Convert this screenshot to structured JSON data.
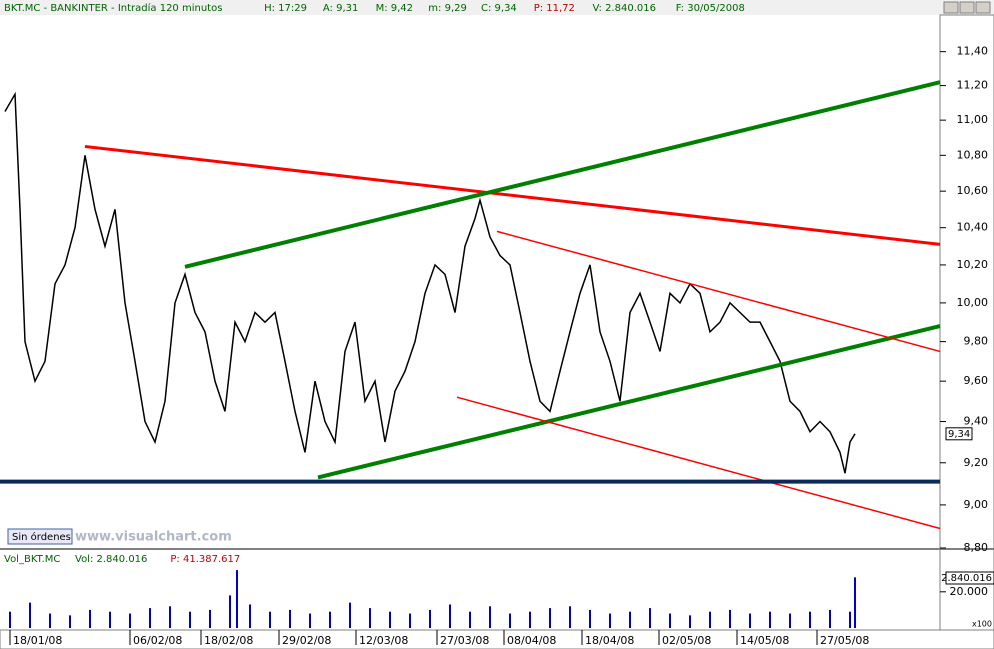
{
  "chart_data": [
    {
      "type": "line",
      "title": "BKT.MC - BANKINTER - Intradía 120 minutos",
      "stats": [
        "H: 17:29",
        "A: 9,31",
        "M: 9,42",
        "m: 9,29",
        "C: 9,34",
        "P: 11,72",
        "V: 2.840.016",
        "F: 30/05/2008"
      ],
      "log_scale": true,
      "xlim": [
        0,
        940
      ],
      "ylim": [
        8.8,
        11.62
      ],
      "yticks": [
        {
          "value": 11.4,
          "label": "11,40"
        },
        {
          "value": 11.2,
          "label": "11,20"
        },
        {
          "value": 11.0,
          "label": "11,00"
        },
        {
          "value": 10.8,
          "label": "10,80"
        },
        {
          "value": 10.6,
          "label": "10,60"
        },
        {
          "value": 10.4,
          "label": "10,40"
        },
        {
          "value": 10.2,
          "label": "10,20"
        },
        {
          "value": 10.0,
          "label": "10,00"
        },
        {
          "value": 9.8,
          "label": "9,80"
        },
        {
          "value": 9.6,
          "label": "9,60"
        },
        {
          "value": 9.4,
          "label": "9,40"
        },
        {
          "value": 9.2,
          "label": "9,20"
        },
        {
          "value": 9.0,
          "label": "9,00"
        },
        {
          "value": 8.8,
          "label": "8,80"
        }
      ],
      "xticks": [
        {
          "value": 10,
          "label": "18/01/08"
        },
        {
          "value": 130,
          "label": "06/02/08"
        },
        {
          "value": 201,
          "label": "18/02/08"
        },
        {
          "value": 279,
          "label": "29/02/08"
        },
        {
          "value": 356,
          "label": "12/03/08"
        },
        {
          "value": 437,
          "label": "27/03/08"
        },
        {
          "value": 504,
          "label": "08/04/08"
        },
        {
          "value": 582,
          "label": "18/04/08"
        },
        {
          "value": 659,
          "label": "02/05/08"
        },
        {
          "value": 737,
          "label": "14/05/08"
        },
        {
          "value": 817,
          "label": "27/05/08"
        }
      ],
      "series": [
        {
          "color": "#000000",
          "x": [
            5,
            15,
            20,
            25,
            35,
            45,
            55,
            65,
            75,
            85,
            95,
            105,
            115,
            125,
            135,
            145,
            155,
            165,
            175,
            185,
            195,
            205,
            215,
            225,
            235,
            245,
            255,
            265,
            275,
            285,
            295,
            305,
            315,
            325,
            335,
            345,
            355,
            365,
            375,
            385,
            395,
            405,
            415,
            425,
            435,
            445,
            455,
            465,
            475,
            480,
            490,
            500,
            510,
            520,
            530,
            540,
            550,
            560,
            570,
            580,
            590,
            600,
            610,
            620,
            630,
            640,
            650,
            660,
            670,
            680,
            690,
            700,
            710,
            720,
            730,
            740,
            750,
            760,
            770,
            780,
            790,
            800,
            810,
            820,
            830,
            840,
            845,
            850,
            855
          ],
          "values": [
            11.05,
            11.15,
            10.5,
            9.8,
            9.6,
            9.7,
            10.1,
            10.2,
            10.4,
            10.8,
            10.5,
            10.3,
            10.5,
            10.0,
            9.7,
            9.4,
            9.3,
            9.5,
            10.0,
            10.15,
            9.95,
            9.85,
            9.6,
            9.45,
            9.9,
            9.8,
            9.95,
            9.9,
            9.95,
            9.7,
            9.45,
            9.25,
            9.6,
            9.4,
            9.3,
            9.75,
            9.9,
            9.5,
            9.6,
            9.3,
            9.55,
            9.65,
            9.8,
            10.05,
            10.2,
            10.15,
            9.95,
            10.3,
            10.45,
            10.55,
            10.35,
            10.25,
            10.2,
            9.95,
            9.7,
            9.5,
            9.45,
            9.65,
            9.85,
            10.05,
            10.2,
            9.85,
            9.7,
            9.5,
            9.95,
            10.05,
            9.9,
            9.75,
            10.05,
            10.0,
            10.1,
            10.05,
            9.85,
            9.9,
            10.0,
            9.95,
            9.9,
            9.9,
            9.8,
            9.7,
            9.5,
            9.45,
            9.35,
            9.4,
            9.35,
            9.25,
            9.15,
            9.3,
            9.34
          ]
        }
      ],
      "trendlines": [
        {
          "color": "#ff0000",
          "width": 3,
          "x": [
            85,
            940
          ],
          "values": [
            10.85,
            10.31
          ]
        },
        {
          "color": "#008000",
          "width": 4,
          "x": [
            185,
            940
          ],
          "values": [
            10.19,
            11.22
          ]
        },
        {
          "color": "#008000",
          "width": 4,
          "x": [
            318,
            940
          ],
          "values": [
            9.13,
            9.88
          ]
        },
        {
          "color": "#ff0000",
          "width": 1.5,
          "x": [
            497,
            940
          ],
          "values": [
            10.38,
            9.75
          ]
        },
        {
          "color": "#ff0000",
          "width": 1.5,
          "x": [
            457,
            940
          ],
          "values": [
            9.52,
            8.89
          ]
        },
        {
          "color": "#0a2a5a",
          "width": 4,
          "x": [
            0,
            940
          ],
          "values": [
            9.11,
            9.11
          ]
        }
      ],
      "last_label": "9,34",
      "last_value": 9.34,
      "button": "Sin órdenes",
      "watermark": "www.visualchart.com"
    },
    {
      "type": "bar",
      "title": "Vol_BKT.MC",
      "stats": [
        "Vol: 2.840.016",
        "P: 41.387.617"
      ],
      "xlim": [
        0,
        940
      ],
      "ylim": [
        0,
        42000
      ],
      "color": "#0000cc",
      "yticks": [
        {
          "value": 20000,
          "label": "20.000"
        }
      ],
      "x": [
        10,
        30,
        50,
        70,
        90,
        110,
        130,
        150,
        170,
        190,
        210,
        230,
        237,
        250,
        270,
        290,
        310,
        330,
        350,
        370,
        390,
        410,
        430,
        450,
        470,
        490,
        510,
        530,
        550,
        570,
        590,
        610,
        630,
        650,
        670,
        690,
        710,
        730,
        750,
        770,
        790,
        810,
        830,
        850,
        855
      ],
      "values": [
        9000,
        14000,
        8000,
        7000,
        10000,
        9000,
        8000,
        11000,
        12000,
        9000,
        10000,
        18000,
        32000,
        13000,
        9000,
        10000,
        8000,
        9000,
        14000,
        11000,
        9000,
        8000,
        10000,
        13000,
        9000,
        12000,
        8000,
        9000,
        11000,
        12000,
        10000,
        8000,
        9000,
        11000,
        8000,
        7000,
        9000,
        10000,
        8000,
        9000,
        8000,
        9000,
        10000,
        9000,
        28000
      ],
      "last_label": "2.840.016",
      "unit_label": "x100"
    }
  ]
}
